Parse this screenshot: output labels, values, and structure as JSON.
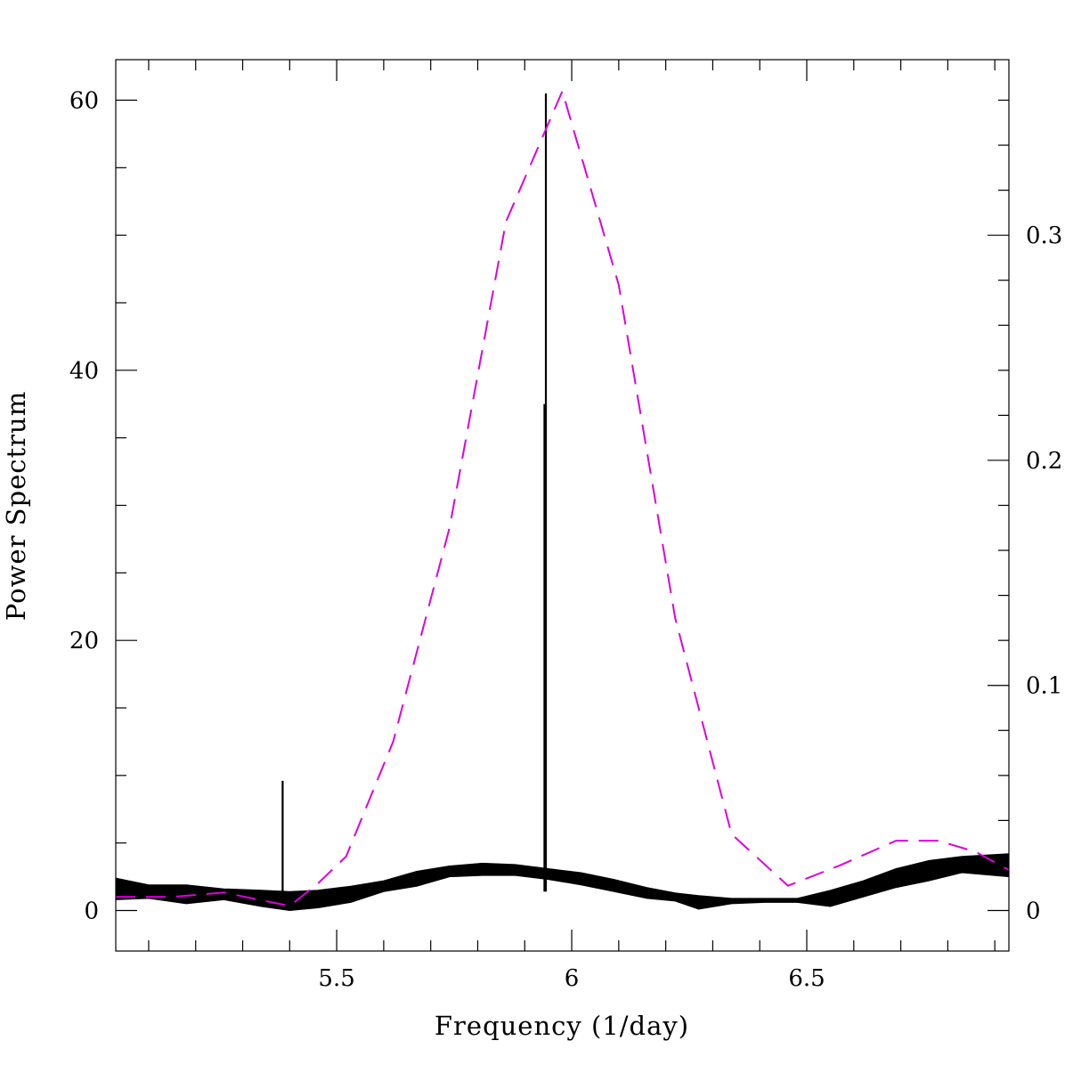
{
  "chart_data": {
    "type": "line",
    "xlabel": "Frequency (1/day)",
    "ylabel": "Power Spectrum",
    "xlim": [
      5.03,
      6.93
    ],
    "ylim_left": [
      -3,
      63
    ],
    "ylim_right": [
      -0.018,
      0.378
    ],
    "x_ticks": [
      {
        "value": 5.5,
        "label": "5.5"
      },
      {
        "value": 6.0,
        "label": "6"
      },
      {
        "value": 6.5,
        "label": "6.5"
      }
    ],
    "y_ticks_left": [
      {
        "value": 0,
        "label": "0"
      },
      {
        "value": 20,
        "label": "20"
      },
      {
        "value": 40,
        "label": "40"
      },
      {
        "value": 60,
        "label": "60"
      }
    ],
    "y_ticks_right": [
      {
        "value": 0,
        "label": "0"
      },
      {
        "value": 0.1,
        "label": "0.1"
      },
      {
        "value": 0.2,
        "label": "0.2"
      },
      {
        "value": 0.3,
        "label": "0.3"
      }
    ],
    "grid": false,
    "legend": "none",
    "series": [
      {
        "color": "#000000",
        "style": "band",
        "axis": "left",
        "points": [
          {
            "x": 5.03,
            "lo": 0.8,
            "hi": 2.4
          },
          {
            "x": 5.1,
            "lo": 0.9,
            "hi": 1.9
          },
          {
            "x": 5.18,
            "lo": 0.5,
            "hi": 1.9
          },
          {
            "x": 5.26,
            "lo": 0.8,
            "hi": 1.6
          },
          {
            "x": 5.34,
            "lo": 0.3,
            "hi": 1.5
          },
          {
            "x": 5.4,
            "lo": 0.0,
            "hi": 1.4
          },
          {
            "x": 5.46,
            "lo": 0.2,
            "hi": 1.5
          },
          {
            "x": 5.53,
            "lo": 0.6,
            "hi": 1.8
          },
          {
            "x": 5.6,
            "lo": 1.4,
            "hi": 2.2
          },
          {
            "x": 5.67,
            "lo": 1.8,
            "hi": 2.9
          },
          {
            "x": 5.74,
            "lo": 2.5,
            "hi": 3.3
          },
          {
            "x": 5.81,
            "lo": 2.6,
            "hi": 3.5
          },
          {
            "x": 5.88,
            "lo": 2.6,
            "hi": 3.4
          },
          {
            "x": 5.95,
            "lo": 2.3,
            "hi": 3.1
          },
          {
            "x": 6.02,
            "lo": 1.9,
            "hi": 2.8
          },
          {
            "x": 6.09,
            "lo": 1.4,
            "hi": 2.3
          },
          {
            "x": 6.16,
            "lo": 0.9,
            "hi": 1.7
          },
          {
            "x": 6.22,
            "lo": 0.7,
            "hi": 1.3
          },
          {
            "x": 6.27,
            "lo": 0.1,
            "hi": 1.1
          },
          {
            "x": 6.34,
            "lo": 0.5,
            "hi": 0.9
          },
          {
            "x": 6.41,
            "lo": 0.6,
            "hi": 0.9
          },
          {
            "x": 6.48,
            "lo": 0.6,
            "hi": 0.9
          },
          {
            "x": 6.55,
            "lo": 0.3,
            "hi": 1.5
          },
          {
            "x": 6.62,
            "lo": 1.0,
            "hi": 2.2
          },
          {
            "x": 6.69,
            "lo": 1.7,
            "hi": 3.1
          },
          {
            "x": 6.76,
            "lo": 2.2,
            "hi": 3.7
          },
          {
            "x": 6.83,
            "lo": 2.8,
            "hi": 4.0
          },
          {
            "x": 6.93,
            "lo": 2.5,
            "hi": 4.2
          }
        ]
      },
      {
        "color": "#000000",
        "style": "spike",
        "axis": "left",
        "points": [
          {
            "x": 5.385,
            "y": 9.6
          },
          {
            "x": 5.945,
            "y": 60.5
          },
          {
            "x": 5.942,
            "y": 37.5
          }
        ]
      },
      {
        "color": "#dd00dd",
        "style": "dashed",
        "axis": "right",
        "points": [
          {
            "x": 5.03,
            "y": 0.006
          },
          {
            "x": 5.15,
            "y": 0.006
          },
          {
            "x": 5.26,
            "y": 0.008
          },
          {
            "x": 5.4,
            "y": 0.002
          },
          {
            "x": 5.46,
            "y": 0.012
          },
          {
            "x": 5.52,
            "y": 0.024
          },
          {
            "x": 5.62,
            "y": 0.075
          },
          {
            "x": 5.74,
            "y": 0.17
          },
          {
            "x": 5.86,
            "y": 0.306
          },
          {
            "x": 5.98,
            "y": 0.364
          },
          {
            "x": 6.1,
            "y": 0.278
          },
          {
            "x": 6.22,
            "y": 0.13
          },
          {
            "x": 6.34,
            "y": 0.034
          },
          {
            "x": 6.46,
            "y": 0.011
          },
          {
            "x": 6.57,
            "y": 0.02
          },
          {
            "x": 6.69,
            "y": 0.031
          },
          {
            "x": 6.78,
            "y": 0.031
          },
          {
            "x": 6.86,
            "y": 0.026
          },
          {
            "x": 6.93,
            "y": 0.018
          }
        ]
      }
    ]
  }
}
